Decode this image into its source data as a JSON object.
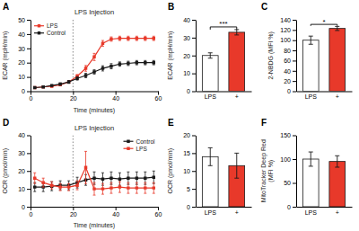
{
  "chart_data": [
    {
      "type": "line",
      "panel_label": "A",
      "title": "LPS Injection",
      "xlabel": "Time (minutes)",
      "ylabel": "ECAR (mpH/min)",
      "xlim": [
        0,
        60
      ],
      "ylim": [
        0,
        50
      ],
      "xticks": [
        0,
        20,
        40,
        60
      ],
      "yticks": [
        0,
        10,
        20,
        30,
        40,
        50
      ],
      "vline_x": 20,
      "legend": "upper left",
      "x": [
        2,
        6,
        10,
        14,
        18,
        22,
        26,
        30,
        34,
        38,
        42,
        46,
        50,
        54,
        58
      ],
      "series": [
        {
          "name": "LPS",
          "color": "#e8392a",
          "marker": "square",
          "values": [
            2.5,
            3.0,
            3.5,
            4.5,
            6.5,
            10.5,
            16.0,
            24.0,
            33.5,
            36.5,
            37.0,
            37.0,
            37.0,
            37.0,
            37.0
          ],
          "errors": [
            0.5,
            0.5,
            0.5,
            0.6,
            0.8,
            1.2,
            2.0,
            2.5,
            2.0,
            1.5,
            1.5,
            1.5,
            1.5,
            1.5,
            1.5
          ]
        },
        {
          "name": "Control",
          "color": "#1a1a1a",
          "marker": "square",
          "values": [
            2.5,
            3.0,
            4.0,
            5.0,
            6.5,
            9.0,
            11.0,
            13.5,
            16.0,
            17.5,
            19.0,
            19.5,
            20.0,
            20.0,
            20.0
          ],
          "errors": [
            0.5,
            0.5,
            0.5,
            0.8,
            1.0,
            1.2,
            1.5,
            1.5,
            1.8,
            1.8,
            1.5,
            1.5,
            1.5,
            1.5,
            1.5
          ]
        }
      ]
    },
    {
      "type": "bar",
      "panel_label": "B",
      "ylabel": "ECAR (mpH/min)",
      "categories": [
        "LPS",
        "+"
      ],
      "values": [
        20.0,
        33.0
      ],
      "errors": [
        1.5,
        1.5
      ],
      "colors": [
        "#ffffff",
        "#e8392a"
      ],
      "ylim": [
        0,
        40
      ],
      "yticks": [
        0,
        10,
        20,
        30,
        40
      ],
      "annotations": [
        {
          "text": "***",
          "y": 37.5,
          "bracket_top": 36.0,
          "bracket_bottom": 34.5
        }
      ]
    },
    {
      "type": "bar",
      "panel_label": "C",
      "ylabel": "2-NBDG (MFI %)",
      "categories": [
        "LPS",
        "+"
      ],
      "values": [
        100.0,
        123.0
      ],
      "errors": [
        8.0,
        4.0
      ],
      "colors": [
        "#ffffff",
        "#e8392a"
      ],
      "ylim": [
        0,
        140
      ],
      "yticks": [
        0,
        20,
        40,
        60,
        80,
        100,
        120,
        140
      ],
      "annotations": [
        {
          "text": "*",
          "y": 134,
          "bracket_top": 131,
          "bracket_bottom": 128
        }
      ]
    },
    {
      "type": "line",
      "panel_label": "D",
      "title": "LPS Injection",
      "xlabel": "Time (minutes)",
      "ylabel": "OCR (pmol/min)",
      "xlim": [
        0,
        60
      ],
      "ylim": [
        0,
        40
      ],
      "xticks": [
        0,
        20,
        40,
        60
      ],
      "yticks": [
        0,
        10,
        20,
        30,
        40
      ],
      "vline_x": 20,
      "legend": "upper right",
      "x": [
        2,
        6,
        10,
        14,
        18,
        22,
        26,
        30,
        34,
        38,
        42,
        46,
        50,
        54,
        58
      ],
      "series": [
        {
          "name": "Control",
          "color": "#1a1a1a",
          "marker": "square",
          "values": [
            11.0,
            11.0,
            11.5,
            12.0,
            12.0,
            13.5,
            15.0,
            16.0,
            15.5,
            16.0,
            15.5,
            16.0,
            16.0,
            16.0,
            16.5
          ],
          "errors": [
            2.5,
            2.5,
            2.5,
            2.5,
            2.5,
            3.0,
            3.0,
            3.5,
            3.5,
            3.5,
            3.5,
            3.5,
            3.5,
            3.5,
            3.5
          ]
        },
        {
          "name": "LPS",
          "color": "#e8392a",
          "marker": "square",
          "values": [
            16.0,
            13.5,
            12.0,
            11.0,
            11.0,
            12.0,
            22.0,
            10.0,
            10.0,
            10.5,
            11.0,
            10.5,
            10.5,
            10.5,
            10.5
          ],
          "errors": [
            3.0,
            2.5,
            2.0,
            2.0,
            2.0,
            2.5,
            9.0,
            3.5,
            3.0,
            3.0,
            3.0,
            3.0,
            3.0,
            3.0,
            3.0
          ]
        }
      ]
    },
    {
      "type": "bar",
      "panel_label": "E",
      "ylabel": "OCR (pmol/min)",
      "categories": [
        "LPS",
        "+"
      ],
      "values": [
        14.0,
        11.5
      ],
      "errors": [
        2.5,
        3.5
      ],
      "colors": [
        "#ffffff",
        "#e8392a"
      ],
      "ylim": [
        0,
        20
      ],
      "yticks": [
        0,
        5,
        10,
        15,
        20
      ]
    },
    {
      "type": "bar",
      "panel_label": "F",
      "ylabel": "MitoTracker Deep Red (MFI %)",
      "categories": [
        "LPS",
        "+"
      ],
      "values": [
        100.0,
        95.0
      ],
      "errors": [
        15.0,
        12.0
      ],
      "colors": [
        "#ffffff",
        "#e8392a"
      ],
      "ylim": [
        0,
        150
      ],
      "yticks": [
        0,
        50,
        100,
        150
      ]
    }
  ]
}
